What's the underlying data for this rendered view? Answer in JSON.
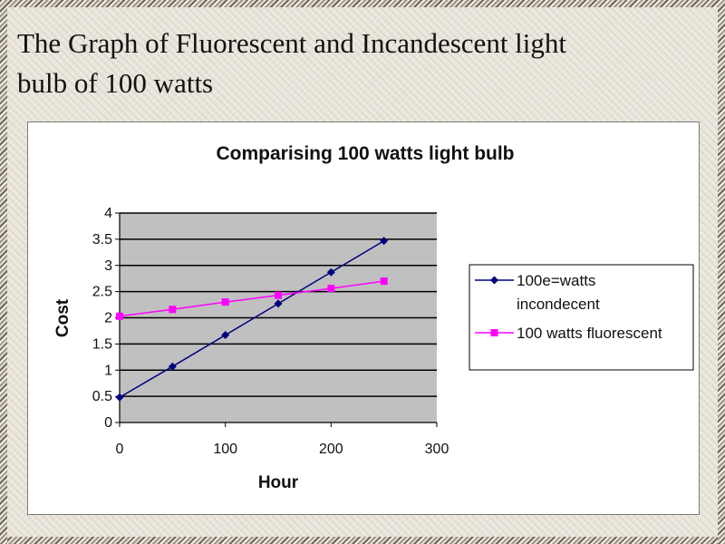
{
  "slide": {
    "title_line1": "The Graph of Fluorescent and Incandescent light",
    "title_line2": "bulb of 100 watts"
  },
  "colors": {
    "plot_background": "#c0c0c0",
    "gridline": "#000000",
    "incandescent": "#000080",
    "fluorescent": "#ff00ff"
  },
  "chart_data": {
    "type": "line",
    "title": "Comparising 100 watts light bulb",
    "xlabel": "Hour",
    "ylabel": "Cost",
    "xlim": [
      0,
      300
    ],
    "ylim": [
      0,
      4
    ],
    "x_ticks": [
      "0",
      "100",
      "200",
      "300"
    ],
    "y_ticks": [
      "0",
      "0.5",
      "1",
      "1.5",
      "2",
      "2.5",
      "3",
      "3.5",
      "4"
    ],
    "grid": "horizontal",
    "legend_position": "right",
    "series": [
      {
        "name_line1": "100e=watts",
        "name_line2": "incondecent",
        "marker": "diamond",
        "x": [
          0,
          50,
          100,
          150,
          200,
          250
        ],
        "y": [
          0.48,
          1.07,
          1.67,
          2.27,
          2.87,
          3.47
        ]
      },
      {
        "name": "100 watts fluorescent",
        "marker": "square",
        "x": [
          0,
          50,
          100,
          150,
          200,
          250
        ],
        "y": [
          2.03,
          2.16,
          2.3,
          2.43,
          2.56,
          2.7
        ]
      }
    ]
  }
}
